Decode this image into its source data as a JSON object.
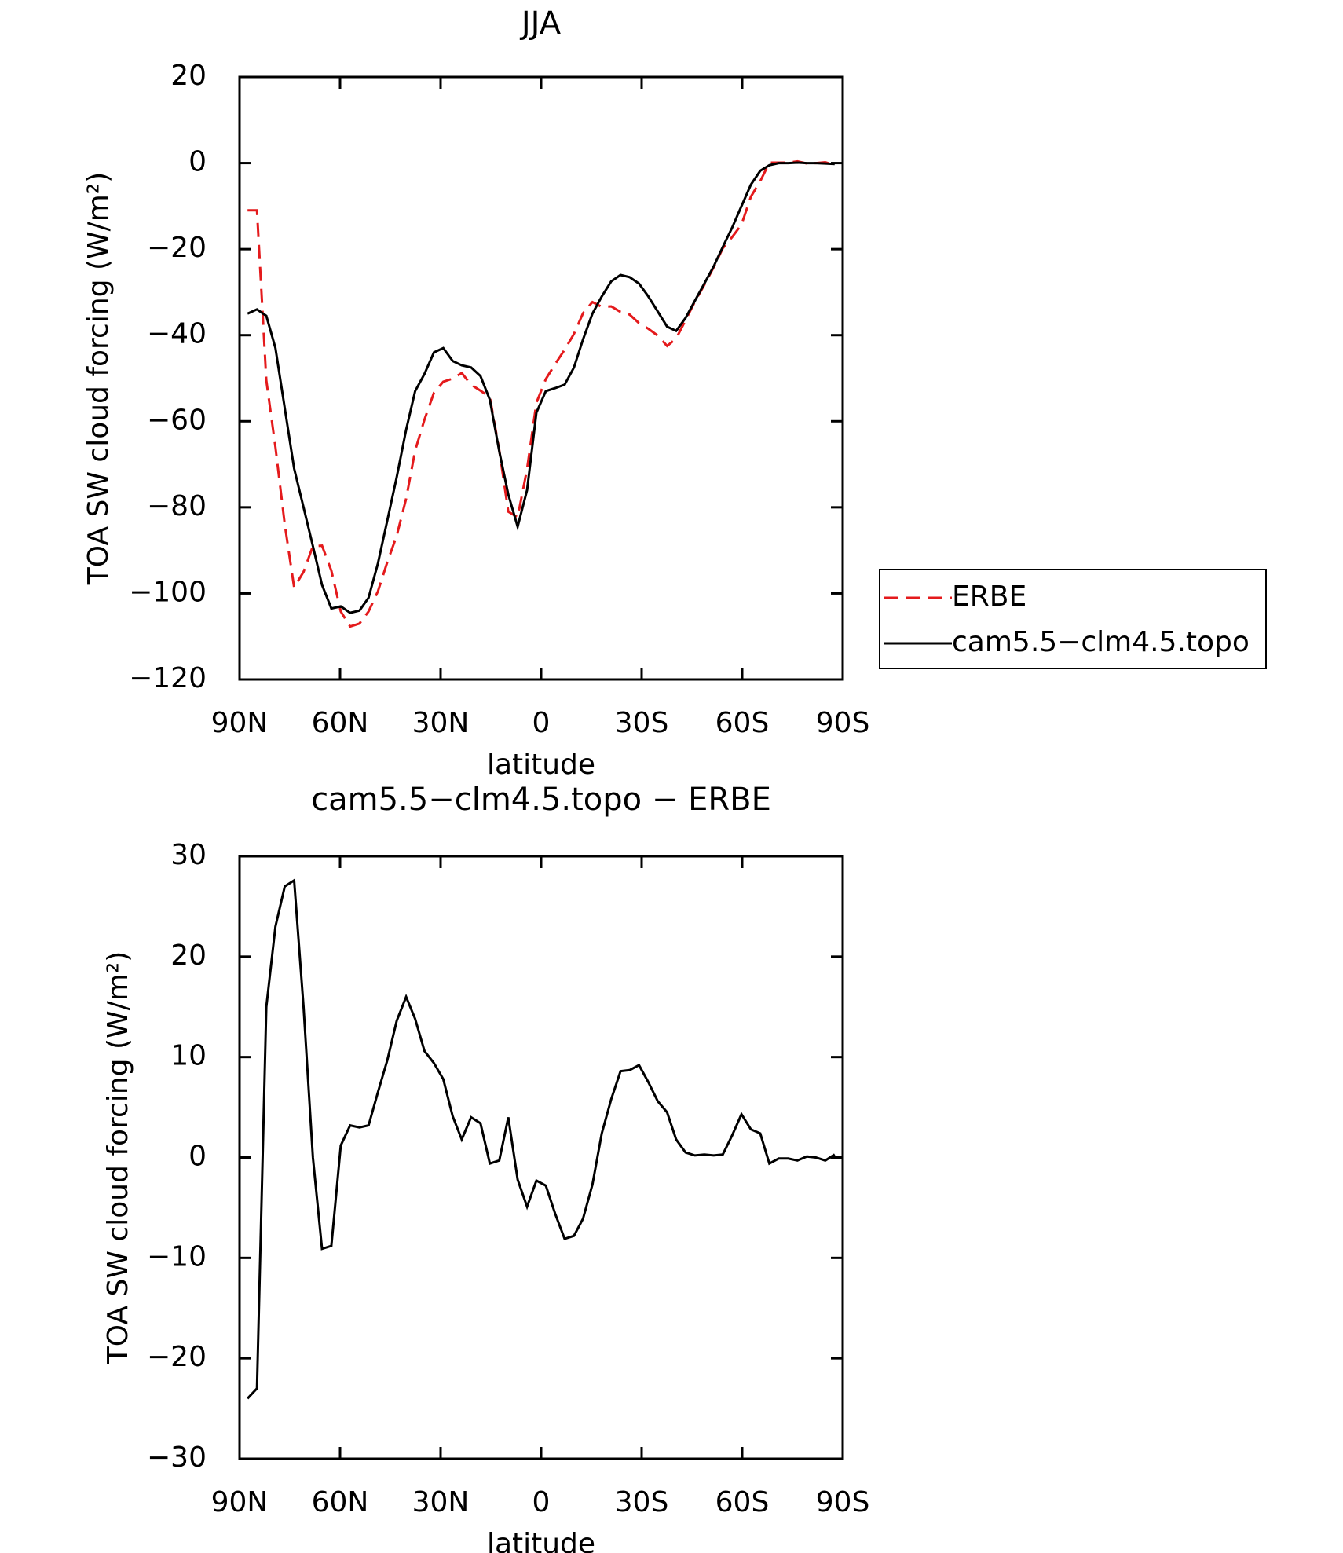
{
  "chart_data": [
    {
      "type": "line",
      "title": "JJA",
      "xlabel": "latitude",
      "ylabel": "TOA SW cloud forcing (W/m²)",
      "x": [
        87.6,
        84.8,
        82.0,
        79.3,
        76.5,
        73.7,
        70.9,
        68.1,
        65.4,
        62.6,
        59.8,
        57.0,
        54.2,
        51.5,
        48.7,
        45.9,
        43.1,
        40.3,
        37.6,
        34.8,
        32.0,
        29.2,
        26.4,
        23.7,
        20.9,
        18.1,
        15.3,
        12.5,
        9.8,
        7.0,
        4.2,
        1.4,
        -1.4,
        -4.2,
        -7.0,
        -9.8,
        -12.5,
        -15.3,
        -18.1,
        -20.9,
        -23.7,
        -26.4,
        -29.2,
        -32.0,
        -34.8,
        -37.6,
        -40.3,
        -43.1,
        -45.9,
        -48.7,
        -51.5,
        -54.2,
        -57.0,
        -59.8,
        -62.6,
        -65.4,
        -68.1,
        -70.9,
        -73.7,
        -76.5,
        -79.3,
        -82.0,
        -84.8,
        -87.6
      ],
      "series": [
        {
          "name": "ERBE",
          "color": "#e41a1c",
          "line_style": "dashed",
          "values": [
            -11,
            -11,
            -50.5,
            -66,
            -84,
            -98.6,
            -95,
            -89,
            -88.9,
            -94.7,
            -104.2,
            -107.7,
            -107,
            -104.2,
            -99.5,
            -92.7,
            -86.6,
            -78,
            -66.8,
            -59.6,
            -53.4,
            -50.8,
            -50.1,
            -48.8,
            -51.5,
            -52.9,
            -54.4,
            -66.7,
            -81,
            -82.3,
            -71.1,
            -55.7,
            -50.2,
            -46.7,
            -43.4,
            -39.7,
            -34.9,
            -32.3,
            -33.4,
            -33.3,
            -34.6,
            -35.2,
            -37.2,
            -38.5,
            -40.1,
            -42.5,
            -40.8,
            -36.5,
            -32.2,
            -28.3,
            -24.2,
            -19.8,
            -17.2,
            -14.3,
            -7.8,
            -4.2,
            0.1,
            0.1,
            0.1,
            0.4,
            -0.1,
            0,
            0.2,
            -0.5
          ]
        },
        {
          "name": "cam5.5−clm4.5.topo",
          "color": "#000000",
          "line_style": "solid",
          "values": [
            -35,
            -34,
            -35.5,
            -43,
            -57,
            -71,
            -80,
            -89,
            -98,
            -103.5,
            -103,
            -104.5,
            -104,
            -101,
            -93,
            -83,
            -73,
            -62,
            -53,
            -49,
            -44,
            -43,
            -46,
            -47,
            -47.5,
            -49.5,
            -55,
            -67,
            -77,
            -84.5,
            -76,
            -58,
            -53,
            -52.3,
            -51.5,
            -47.5,
            -41,
            -35,
            -31,
            -27.5,
            -26,
            -26.5,
            -28,
            -31,
            -34.5,
            -38,
            -39,
            -36,
            -32,
            -28,
            -24,
            -19.5,
            -15,
            -10,
            -5,
            -1.8,
            -0.5,
            0,
            0,
            0.1,
            0,
            0,
            -0.1,
            -0.2
          ]
        }
      ],
      "xlim": [
        90,
        -90
      ],
      "xticks": [
        {
          "value": 90,
          "label": "90N"
        },
        {
          "value": 60,
          "label": "60N"
        },
        {
          "value": 30,
          "label": "30N"
        },
        0,
        {
          "value": -30,
          "label": "30S"
        },
        {
          "value": -60,
          "label": "60S"
        },
        {
          "value": -90,
          "label": "90S"
        }
      ],
      "ylim": [
        -120,
        20
      ],
      "yticks": [
        20,
        0,
        {
          "value": -20,
          "label": "−20"
        },
        {
          "value": -40,
          "label": "−40"
        },
        {
          "value": -60,
          "label": "−60"
        },
        {
          "value": -80,
          "label": "−80"
        },
        {
          "value": -100,
          "label": "−100"
        },
        {
          "value": -120,
          "label": "−120"
        }
      ],
      "legend": "right"
    },
    {
      "type": "line",
      "title": "cam5.5−clm4.5.topo − ERBE",
      "xlabel": "latitude",
      "ylabel": "TOA SW cloud forcing (W/m²)",
      "x": [
        87.6,
        84.8,
        82.0,
        79.3,
        76.5,
        73.7,
        70.9,
        68.1,
        65.4,
        62.6,
        59.8,
        57.0,
        54.2,
        51.5,
        48.7,
        45.9,
        43.1,
        40.3,
        37.6,
        34.8,
        32.0,
        29.2,
        26.4,
        23.7,
        20.9,
        18.1,
        15.3,
        12.5,
        9.8,
        7.0,
        4.2,
        1.4,
        -1.4,
        -4.2,
        -7.0,
        -9.8,
        -12.5,
        -15.3,
        -18.1,
        -20.9,
        -23.7,
        -26.4,
        -29.2,
        -32.0,
        -34.8,
        -37.6,
        -40.3,
        -43.1,
        -45.9,
        -48.7,
        -51.5,
        -54.2,
        -57.0,
        -59.8,
        -62.6,
        -65.4,
        -68.1,
        -70.9,
        -73.7,
        -76.5,
        -79.3,
        -82.0,
        -84.8,
        -87.6
      ],
      "series": [
        {
          "color": "#000000",
          "line_style": "solid",
          "values": [
            -24,
            -23,
            15,
            23,
            27,
            27.6,
            15,
            0,
            -9.1,
            -8.8,
            1.2,
            3.2,
            3,
            3.2,
            6.5,
            9.7,
            13.6,
            16,
            13.8,
            10.6,
            9.4,
            7.8,
            4.1,
            1.8,
            4,
            3.4,
            -0.6,
            -0.3,
            4,
            -2.2,
            -4.9,
            -2.3,
            -2.8,
            -5.6,
            -8.1,
            -7.8,
            -6.1,
            -2.7,
            2.4,
            5.8,
            8.6,
            8.7,
            9.2,
            7.5,
            5.6,
            4.5,
            1.8,
            0.5,
            0.2,
            0.3,
            0.2,
            0.3,
            2.2,
            4.3,
            2.8,
            2.4,
            -0.6,
            -0.1,
            -0.1,
            -0.3,
            0.1,
            0,
            -0.3,
            0.3
          ]
        }
      ],
      "xlim": [
        90,
        -90
      ],
      "xticks": [
        {
          "value": 90,
          "label": "90N"
        },
        {
          "value": 60,
          "label": "60N"
        },
        {
          "value": 30,
          "label": "30N"
        },
        0,
        {
          "value": -30,
          "label": "30S"
        },
        {
          "value": -60,
          "label": "60S"
        },
        {
          "value": -90,
          "label": "90S"
        }
      ],
      "ylim": [
        -30,
        30
      ],
      "yticks": [
        30,
        20,
        10,
        0,
        {
          "value": -10,
          "label": "−10"
        },
        {
          "value": -20,
          "label": "−20"
        },
        {
          "value": -30,
          "label": "−30"
        }
      ]
    }
  ]
}
